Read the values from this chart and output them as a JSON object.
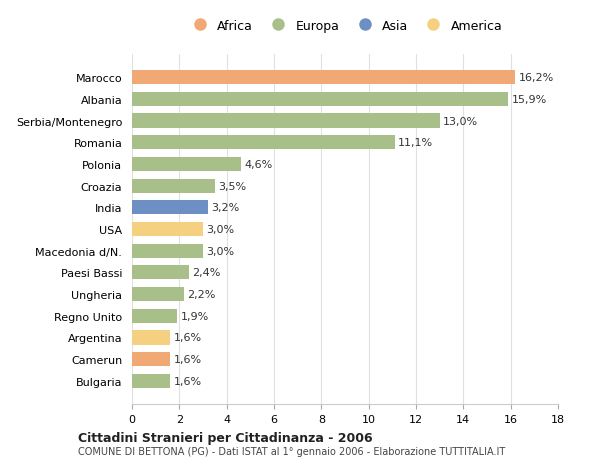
{
  "countries": [
    "Bulgaria",
    "Camerun",
    "Argentina",
    "Regno Unito",
    "Ungheria",
    "Paesi Bassi",
    "Macedonia d/N.",
    "USA",
    "India",
    "Croazia",
    "Polonia",
    "Romania",
    "Serbia/Montenegro",
    "Albania",
    "Marocco"
  ],
  "values": [
    1.6,
    1.6,
    1.6,
    1.9,
    2.2,
    2.4,
    3.0,
    3.0,
    3.2,
    3.5,
    4.6,
    11.1,
    13.0,
    15.9,
    16.2
  ],
  "continents": [
    "Europa",
    "Africa",
    "America",
    "Europa",
    "Europa",
    "Europa",
    "Europa",
    "America",
    "Asia",
    "Europa",
    "Europa",
    "Europa",
    "Europa",
    "Europa",
    "Africa"
  ],
  "labels": [
    "1,6%",
    "1,6%",
    "1,6%",
    "1,9%",
    "2,2%",
    "2,4%",
    "3,0%",
    "3,0%",
    "3,2%",
    "3,5%",
    "4,6%",
    "11,1%",
    "13,0%",
    "15,9%",
    "16,2%"
  ],
  "colors": {
    "Africa": "#f0a875",
    "Europa": "#a8bf8a",
    "Asia": "#6e8fc4",
    "America": "#f5d080"
  },
  "legend_order": [
    "Africa",
    "Europa",
    "Asia",
    "America"
  ],
  "title1": "Cittadini Stranieri per Cittadinanza - 2006",
  "title2": "COMUNE DI BETTONA (PG) - Dati ISTAT al 1° gennaio 2006 - Elaborazione TUTTITALIA.IT",
  "xlim": [
    0,
    18
  ],
  "xticks": [
    0,
    2,
    4,
    6,
    8,
    10,
    12,
    14,
    16,
    18
  ],
  "background_color": "#ffffff",
  "grid_color": "#e0e0e0"
}
